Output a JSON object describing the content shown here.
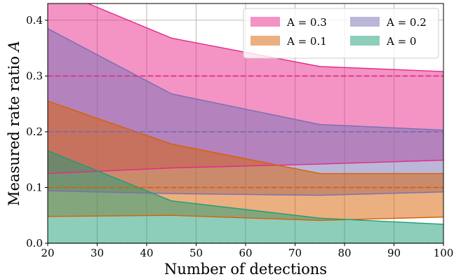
{
  "chart_data": {
    "type": "area",
    "xlabel": "Number of detections",
    "ylabel": "Measured rate ratio A",
    "xlim": [
      20,
      100
    ],
    "ylim": [
      0,
      0.43
    ],
    "x_ticks": [
      "20",
      "30",
      "40",
      "50",
      "60",
      "70",
      "80",
      "90",
      "100"
    ],
    "y_ticks": [
      "0.0",
      "0.1",
      "0.2",
      "0.3",
      "0.4"
    ],
    "grid": true,
    "legend_position": "top-right",
    "x": [
      20,
      45,
      75,
      100
    ],
    "series": [
      {
        "name": "A = 0.3",
        "true_value": 0.3,
        "upper": [
          0.46,
          0.368,
          0.317,
          0.308
        ],
        "lower": [
          0.125,
          0.135,
          0.142,
          0.149
        ],
        "fill_color": "#e7298a",
        "line_color": "#e7298a"
      },
      {
        "name": "A = 0.2",
        "true_value": 0.2,
        "upper": [
          0.385,
          0.268,
          0.213,
          0.203
        ],
        "lower": [
          0.094,
          0.089,
          0.086,
          0.092
        ],
        "fill_color": "#7570b3",
        "line_color": "#7570b3"
      },
      {
        "name": "A = 0.1",
        "true_value": 0.1,
        "upper": [
          0.255,
          0.178,
          0.125,
          0.125
        ],
        "lower": [
          0.048,
          0.05,
          0.041,
          0.047
        ],
        "fill_color": "#d95f02",
        "line_color": "#d95f02"
      },
      {
        "name": "A = 0",
        "true_value": 0,
        "upper": [
          0.166,
          0.076,
          0.045,
          0.034
        ],
        "lower": [
          0,
          0,
          0,
          0
        ],
        "fill_color": "#1b9e77",
        "line_color": "#1b9e77"
      }
    ]
  }
}
